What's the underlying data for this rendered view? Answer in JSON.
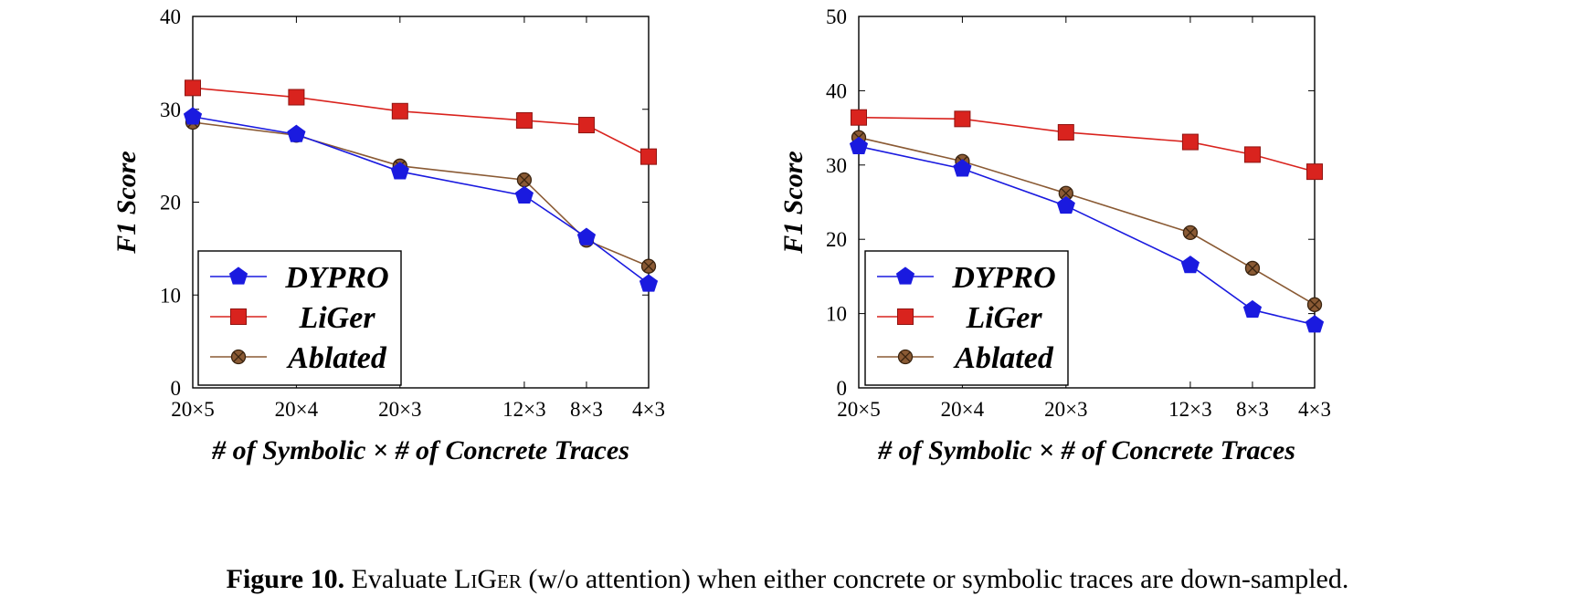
{
  "colors": {
    "dypro": "#1a1adf",
    "liger": "#d9231e",
    "ablated": "#8a5a34"
  },
  "chart_data": [
    {
      "type": "line",
      "xlabel": "# of Symbolic × # of Concrete Traces",
      "ylabel": "F1 Score",
      "x": [
        0,
        1,
        2,
        3.2,
        3.8,
        4.4
      ],
      "xtick_labels": [
        "20×5",
        "20×4",
        "20×3",
        "12×3",
        "8×3",
        "4×3"
      ],
      "ylim": [
        0,
        40
      ],
      "yticks": [
        0,
        10,
        20,
        30,
        40
      ],
      "grid": false,
      "legend": "bottom-left",
      "series": [
        {
          "name": "DYPRO",
          "marker": "pentagon",
          "color": "#1a1adf",
          "values": [
            29.2,
            27.3,
            23.3,
            20.7,
            16.2,
            11.2
          ]
        },
        {
          "name": "LiGer",
          "marker": "square",
          "color": "#d9231e",
          "values": [
            32.3,
            31.3,
            29.8,
            28.8,
            28.3,
            24.9
          ]
        },
        {
          "name": "Ablated",
          "marker": "otimes",
          "color": "#8a5a34",
          "values": [
            28.6,
            27.2,
            23.9,
            22.4,
            15.9,
            13.1
          ]
        }
      ]
    },
    {
      "type": "line",
      "xlabel": "# of Symbolic × # of Concrete Traces",
      "ylabel": "F1 Score",
      "x": [
        0,
        1,
        2,
        3.2,
        3.8,
        4.4
      ],
      "xtick_labels": [
        "20×5",
        "20×4",
        "20×3",
        "12×3",
        "8×3",
        "4×3"
      ],
      "ylim": [
        0,
        50
      ],
      "yticks": [
        0,
        10,
        20,
        30,
        40,
        50
      ],
      "grid": false,
      "legend": "bottom-left",
      "series": [
        {
          "name": "DYPRO",
          "marker": "pentagon",
          "color": "#1a1adf",
          "values": [
            32.5,
            29.5,
            24.5,
            16.5,
            10.5,
            8.5
          ]
        },
        {
          "name": "LiGer",
          "marker": "square",
          "color": "#d9231e",
          "values": [
            36.4,
            36.2,
            34.4,
            33.1,
            31.4,
            29.1
          ]
        },
        {
          "name": "Ablated",
          "marker": "otimes",
          "color": "#8a5a34",
          "values": [
            33.7,
            30.5,
            26.2,
            20.9,
            16.1,
            11.2
          ]
        }
      ]
    }
  ],
  "caption": {
    "label": "Figure 10.",
    "text_before": " Evaluate ",
    "name": "LiGer",
    "text_after": " (w/o attention) when either concrete or symbolic traces are down-sampled."
  }
}
